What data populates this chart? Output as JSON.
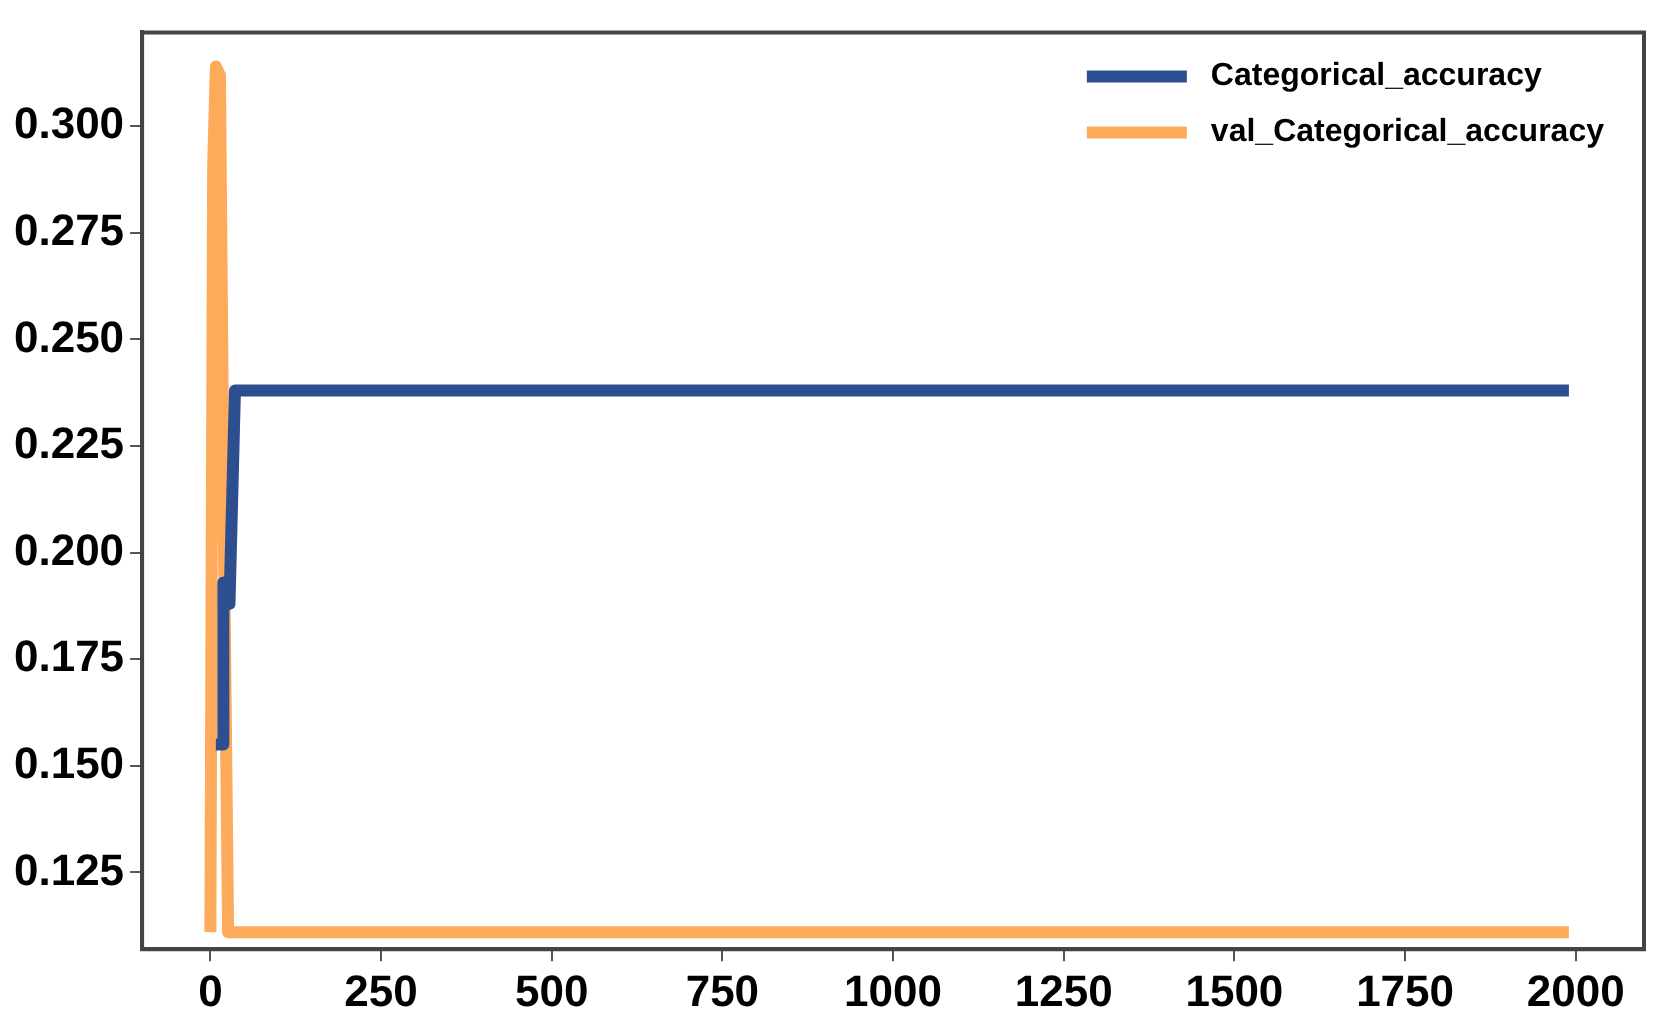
{
  "chart_data": {
    "type": "line",
    "xlim": [
      -100,
      2100
    ],
    "ylim": [
      0.107,
      0.322
    ],
    "xticks": [
      0,
      250,
      500,
      750,
      1000,
      1250,
      1500,
      1750,
      2000
    ],
    "yticks": [
      0.125,
      {
        "value": 0.15,
        "label": "0.150"
      },
      0.175,
      {
        "value": 0.2,
        "label": "0.200"
      },
      0.225,
      {
        "value": 0.25,
        "label": "0.250"
      },
      0.275,
      {
        "value": 0.3,
        "label": "0.300"
      }
    ],
    "grid": false,
    "legend": "top right",
    "marker": "none",
    "line_style": "solid",
    "series": [
      {
        "name": "Categorical_accuracy",
        "color": "#2e4f8f",
        "x": [
          8,
          18,
          19,
          28,
          36,
          1990
        ],
        "values": [
          0.155,
          0.155,
          0.193,
          0.188,
          0.238,
          0.238
        ]
      },
      {
        "name": "val_Categorical_accuracy",
        "color": "#fdab5a",
        "x": [
          0,
          4,
          8,
          14,
          20,
          26,
          1990
        ],
        "values": [
          0.111,
          0.29,
          0.314,
          0.312,
          0.2,
          0.111,
          0.111
        ]
      }
    ]
  }
}
